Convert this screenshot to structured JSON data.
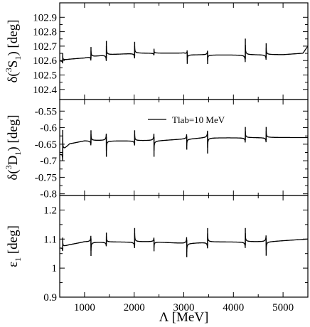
{
  "chart_data": [
    {
      "type": "line",
      "ylabel_main": "δ(",
      "ylabel_sup": "3",
      "ylabel_letter": "S",
      "ylabel_sub": "1",
      "ylabel_tail": ") [deg]",
      "xlim": [
        500,
        5500
      ],
      "ylim": [
        102.33,
        103.0
      ],
      "yticks": [
        "102.4",
        "102.5",
        "102.6",
        "102.7",
        "102.8",
        "102.9"
      ],
      "ytick_values": [
        102.4,
        102.5,
        102.6,
        102.7,
        102.8,
        102.9
      ],
      "baseline": [
        [
          500,
          102.6
        ],
        [
          700,
          102.61
        ],
        [
          1000,
          102.62
        ],
        [
          1130,
          102.63
        ],
        [
          1200,
          102.63
        ],
        [
          1440,
          102.64
        ],
        [
          1500,
          102.64
        ],
        [
          2000,
          102.65
        ],
        [
          2400,
          102.65
        ],
        [
          3000,
          102.65
        ],
        [
          3080,
          102.64
        ],
        [
          3480,
          102.64
        ],
        [
          4000,
          102.64
        ],
        [
          4250,
          102.64
        ],
        [
          4600,
          102.64
        ],
        [
          5000,
          102.64
        ],
        [
          5400,
          102.65
        ],
        [
          5500,
          102.7
        ]
      ],
      "resonances": [
        {
          "x": 560,
          "amp": 0.03,
          "sign": 1
        },
        {
          "x": 1130,
          "amp": 0.04,
          "sign": 1
        },
        {
          "x": 1440,
          "amp": 0.06,
          "sign": 1
        },
        {
          "x": 2010,
          "amp": 0.05,
          "sign": 1
        },
        {
          "x": 2400,
          "amp": 0.02,
          "sign": 1
        },
        {
          "x": 3070,
          "amp": 0.04,
          "sign": -1
        },
        {
          "x": 3480,
          "amp": 0.04,
          "sign": -1
        },
        {
          "x": 4240,
          "amp": 0.07,
          "sign": 1
        },
        {
          "x": 4660,
          "amp": 0.05,
          "sign": 1
        }
      ]
    },
    {
      "type": "line",
      "ylabel_main": "δ(",
      "ylabel_sup": "3",
      "ylabel_letter": "D",
      "ylabel_sub": "1",
      "ylabel_tail": ") [deg]",
      "xlim": [
        500,
        5500
      ],
      "ylim": [
        -0.805,
        -0.515
      ],
      "yticks": [
        "-0.55",
        "-0.6",
        "-0.65",
        "-0.7",
        "-0.75",
        "-0.8"
      ],
      "ytick_values": [
        -0.55,
        -0.6,
        -0.65,
        -0.7,
        -0.75,
        -0.8
      ],
      "legend": "Tlab=10 MeV",
      "baseline": [
        [
          500,
          -0.68
        ],
        [
          700,
          -0.65
        ],
        [
          1000,
          -0.64
        ],
        [
          1440,
          -0.64
        ],
        [
          2000,
          -0.64
        ],
        [
          2400,
          -0.64
        ],
        [
          3000,
          -0.635
        ],
        [
          3500,
          -0.63
        ],
        [
          4000,
          -0.63
        ],
        [
          4600,
          -0.63
        ],
        [
          5500,
          -0.63
        ]
      ],
      "resonances": [
        {
          "x": 560,
          "amp": 0.04,
          "sign": 1
        },
        {
          "x": 1130,
          "amp": 0.02,
          "sign": 1
        },
        {
          "x": 1440,
          "amp": 0.03,
          "sign": -1
        },
        {
          "x": 2010,
          "amp": 0.02,
          "sign": 1
        },
        {
          "x": 2400,
          "amp": 0.03,
          "sign": -1
        },
        {
          "x": 3060,
          "amp": 0.02,
          "sign": -1
        },
        {
          "x": 3480,
          "amp": 0.03,
          "sign": -1
        },
        {
          "x": 4240,
          "amp": 0.02,
          "sign": 1
        },
        {
          "x": 4660,
          "amp": 0.02,
          "sign": 1
        }
      ]
    },
    {
      "type": "line",
      "ylabel_main": "ε",
      "ylabel_sub": "1",
      "ylabel_tail": " [deg]",
      "xlim": [
        500,
        5500
      ],
      "ylim": [
        0.9,
        1.25
      ],
      "yticks": [
        "1.2",
        "1.1",
        "1",
        "0.9"
      ],
      "ytick_values": [
        1.2,
        1.1,
        1.0,
        0.9
      ],
      "xticks": [
        "1000",
        "2000",
        "3000",
        "4000",
        "5000"
      ],
      "xtick_values": [
        1000,
        2000,
        3000,
        4000,
        5000
      ],
      "xlabel": "Λ [MeV]",
      "baseline": [
        [
          500,
          1.07
        ],
        [
          700,
          1.08
        ],
        [
          1000,
          1.09
        ],
        [
          1440,
          1.09
        ],
        [
          2000,
          1.09
        ],
        [
          2400,
          1.09
        ],
        [
          3000,
          1.085
        ],
        [
          3500,
          1.09
        ],
        [
          4000,
          1.09
        ],
        [
          4600,
          1.09
        ],
        [
          5500,
          1.1
        ]
      ],
      "resonances": [
        {
          "x": 560,
          "amp": 0.02,
          "sign": 1
        },
        {
          "x": 1130,
          "amp": 0.03,
          "sign": -1
        },
        {
          "x": 1440,
          "amp": 0.02,
          "sign": 1
        },
        {
          "x": 2010,
          "amp": 0.03,
          "sign": 1
        },
        {
          "x": 2400,
          "amp": 0.02,
          "sign": -1
        },
        {
          "x": 3060,
          "amp": 0.03,
          "sign": -1
        },
        {
          "x": 3480,
          "amp": 0.03,
          "sign": 1
        },
        {
          "x": 4240,
          "amp": 0.03,
          "sign": 1
        },
        {
          "x": 4660,
          "amp": 0.03,
          "sign": -1
        }
      ]
    }
  ]
}
